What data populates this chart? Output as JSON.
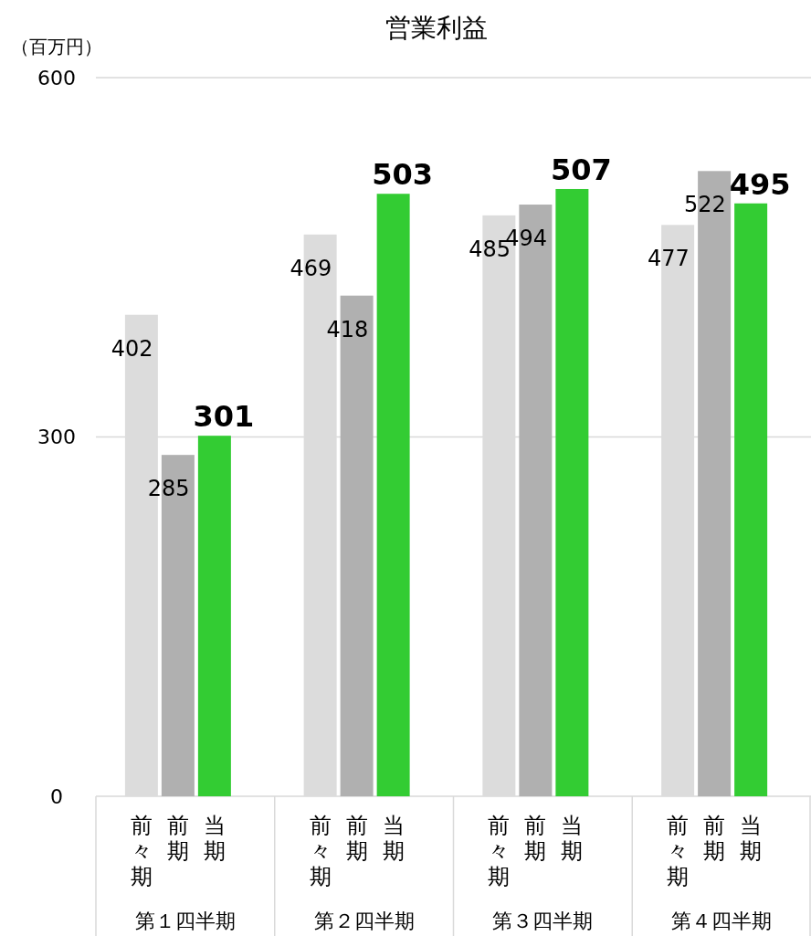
{
  "chart_data": {
    "type": "bar",
    "title": "営業利益",
    "ylabel": "（百万円）",
    "categories": [
      "第１四半期",
      "第２四半期",
      "第３四半期",
      "第４四半期"
    ],
    "series": [
      {
        "name": "前々期",
        "color": "#dcdcdc",
        "values": [
          402,
          469,
          485,
          477
        ]
      },
      {
        "name": "前期",
        "color": "#b0b0b0",
        "values": [
          285,
          418,
          494,
          522
        ]
      },
      {
        "name": "当期",
        "color": "#33cc33",
        "values": [
          301,
          503,
          507,
          495
        ]
      }
    ],
    "ylim": [
      0,
      600
    ],
    "yticks": [
      0,
      300,
      600
    ],
    "grid": "y",
    "data_labels": true
  }
}
